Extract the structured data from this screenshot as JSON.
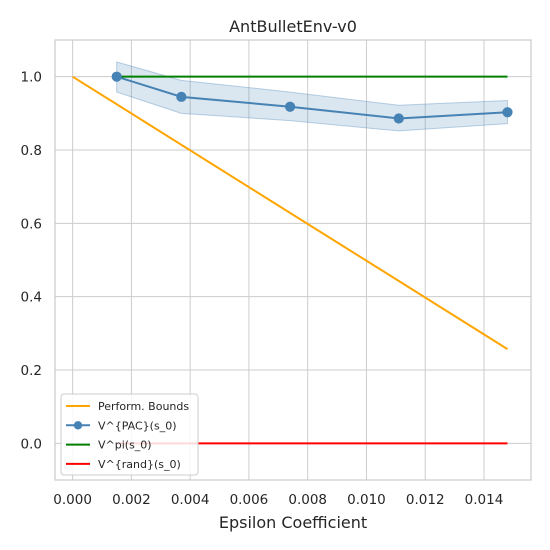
{
  "chart_data": {
    "type": "line",
    "title": "AntBulletEnv-v0",
    "xlabel": "Epsilon Coefficient",
    "ylabel": "",
    "xlim": [
      -0.0006,
      0.0156
    ],
    "ylim": [
      -0.1,
      1.1
    ],
    "xticks": [
      0.0,
      0.002,
      0.004,
      0.006,
      0.008,
      0.01,
      0.012,
      0.014
    ],
    "xtick_labels": [
      "0.000",
      "0.002",
      "0.004",
      "0.006",
      "0.008",
      "0.010",
      "0.012",
      "0.014"
    ],
    "yticks": [
      0.0,
      0.2,
      0.4,
      0.6,
      0.8,
      1.0
    ],
    "ytick_labels": [
      "0.0",
      "0.2",
      "0.4",
      "0.6",
      "0.8",
      "1.0"
    ],
    "grid": true,
    "legend_position": "bottom-left",
    "series": [
      {
        "name": "Perform. Bounds",
        "color": "#ffa500",
        "marker": false,
        "x": [
          0.0,
          0.0148
        ],
        "y": [
          1.0,
          0.257
        ]
      },
      {
        "name": "V^{PAC}(s_0)",
        "color": "#4682b4",
        "marker": true,
        "x": [
          0.0015,
          0.0037,
          0.0074,
          0.0111,
          0.0148
        ],
        "y": [
          1.0,
          0.945,
          0.918,
          0.886,
          0.903
        ],
        "band_low": [
          0.958,
          0.9,
          0.88,
          0.852,
          0.872
        ],
        "band_high": [
          1.04,
          0.99,
          0.958,
          0.922,
          0.935
        ]
      },
      {
        "name": "V^pi(s_0)",
        "color": "#008000",
        "marker": false,
        "x": [
          0.0015,
          0.0148
        ],
        "y": [
          1.0,
          1.0
        ]
      },
      {
        "name": "V^{rand}(s_0)",
        "color": "#ff0000",
        "marker": false,
        "x": [
          0.0015,
          0.0148
        ],
        "y": [
          0.0,
          0.0
        ]
      }
    ]
  }
}
